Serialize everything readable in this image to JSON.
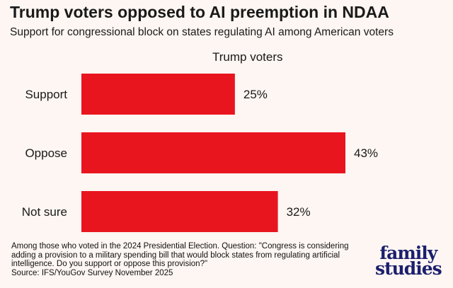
{
  "chart_data": {
    "type": "bar",
    "orientation": "horizontal",
    "title": "Trump voters opposed to AI preemption in NDAA",
    "subtitle": "Support for congressional block on states regulating AI among American voters",
    "categories": [
      "Support",
      "Oppose",
      "Not sure"
    ],
    "series": [
      {
        "name": "Trump voters",
        "values": [
          25,
          43,
          32
        ]
      }
    ],
    "value_labels": [
      "25%",
      "43%",
      "32%"
    ],
    "xlim": [
      0,
      50
    ],
    "grid": false,
    "bar_color": "#e8151f"
  },
  "footnote": {
    "lines": [
      "Among those who voted in the 2024 Presidential Election. Question: \"Congress is considering",
      "adding a provision to a military spending bill that would block states from regulating artificial",
      "intelligence. Do you support or oppose this provision?\"",
      "Source: IFS/YouGov Survey November 2025"
    ]
  },
  "logo": {
    "line1": "family",
    "line2": "studies"
  }
}
